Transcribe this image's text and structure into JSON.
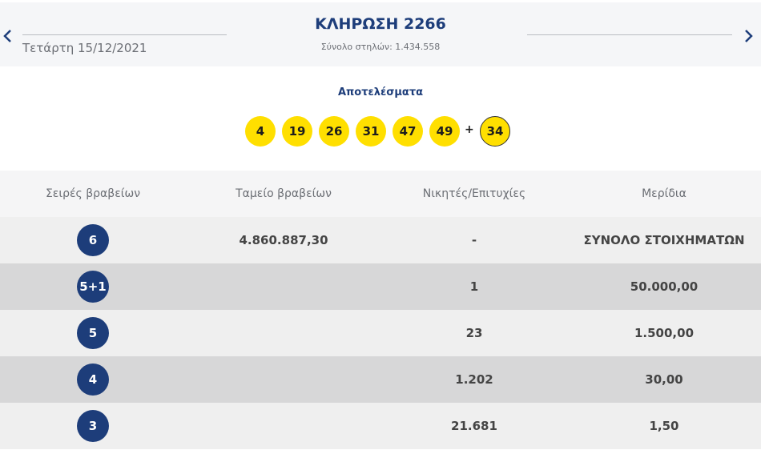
{
  "header": {
    "date": "Τετάρτη 15/12/2021",
    "title": "ΚΛΗΡΩΣΗ 2266",
    "total_columns": "Σύνολο στηλών: 1.434.558"
  },
  "results": {
    "label": "Αποτελέσματα",
    "numbers": [
      "4",
      "19",
      "26",
      "31",
      "47",
      "49"
    ],
    "plus": "+",
    "bonus": "34",
    "ball_color": "#ffdf00"
  },
  "table": {
    "headers": [
      "Σειρές βραβείων",
      "Ταμείο βραβείων",
      "Νικητές/Επιτυχίες",
      "Μερίδια"
    ],
    "rows": [
      {
        "category": "6",
        "fund": "4.860.887,30",
        "winners": "-",
        "share": "ΣΥΝΟΛΟ ΣΤΟΙΧΗΜΑΤΩΝ"
      },
      {
        "category": "5+1",
        "fund": "",
        "winners": "1",
        "share": "50.000,00"
      },
      {
        "category": "5",
        "fund": "",
        "winners": "23",
        "share": "1.500,00"
      },
      {
        "category": "4",
        "fund": "",
        "winners": "1.202",
        "share": "30,00"
      },
      {
        "category": "3",
        "fund": "",
        "winners": "21.681",
        "share": "1,50"
      }
    ]
  },
  "colors": {
    "accent": "#1d3d7a",
    "row_light": "#efefef",
    "row_dark": "#d7d7d8"
  },
  "icons": {
    "prev": "chevron-left-icon",
    "next": "chevron-right-icon"
  }
}
